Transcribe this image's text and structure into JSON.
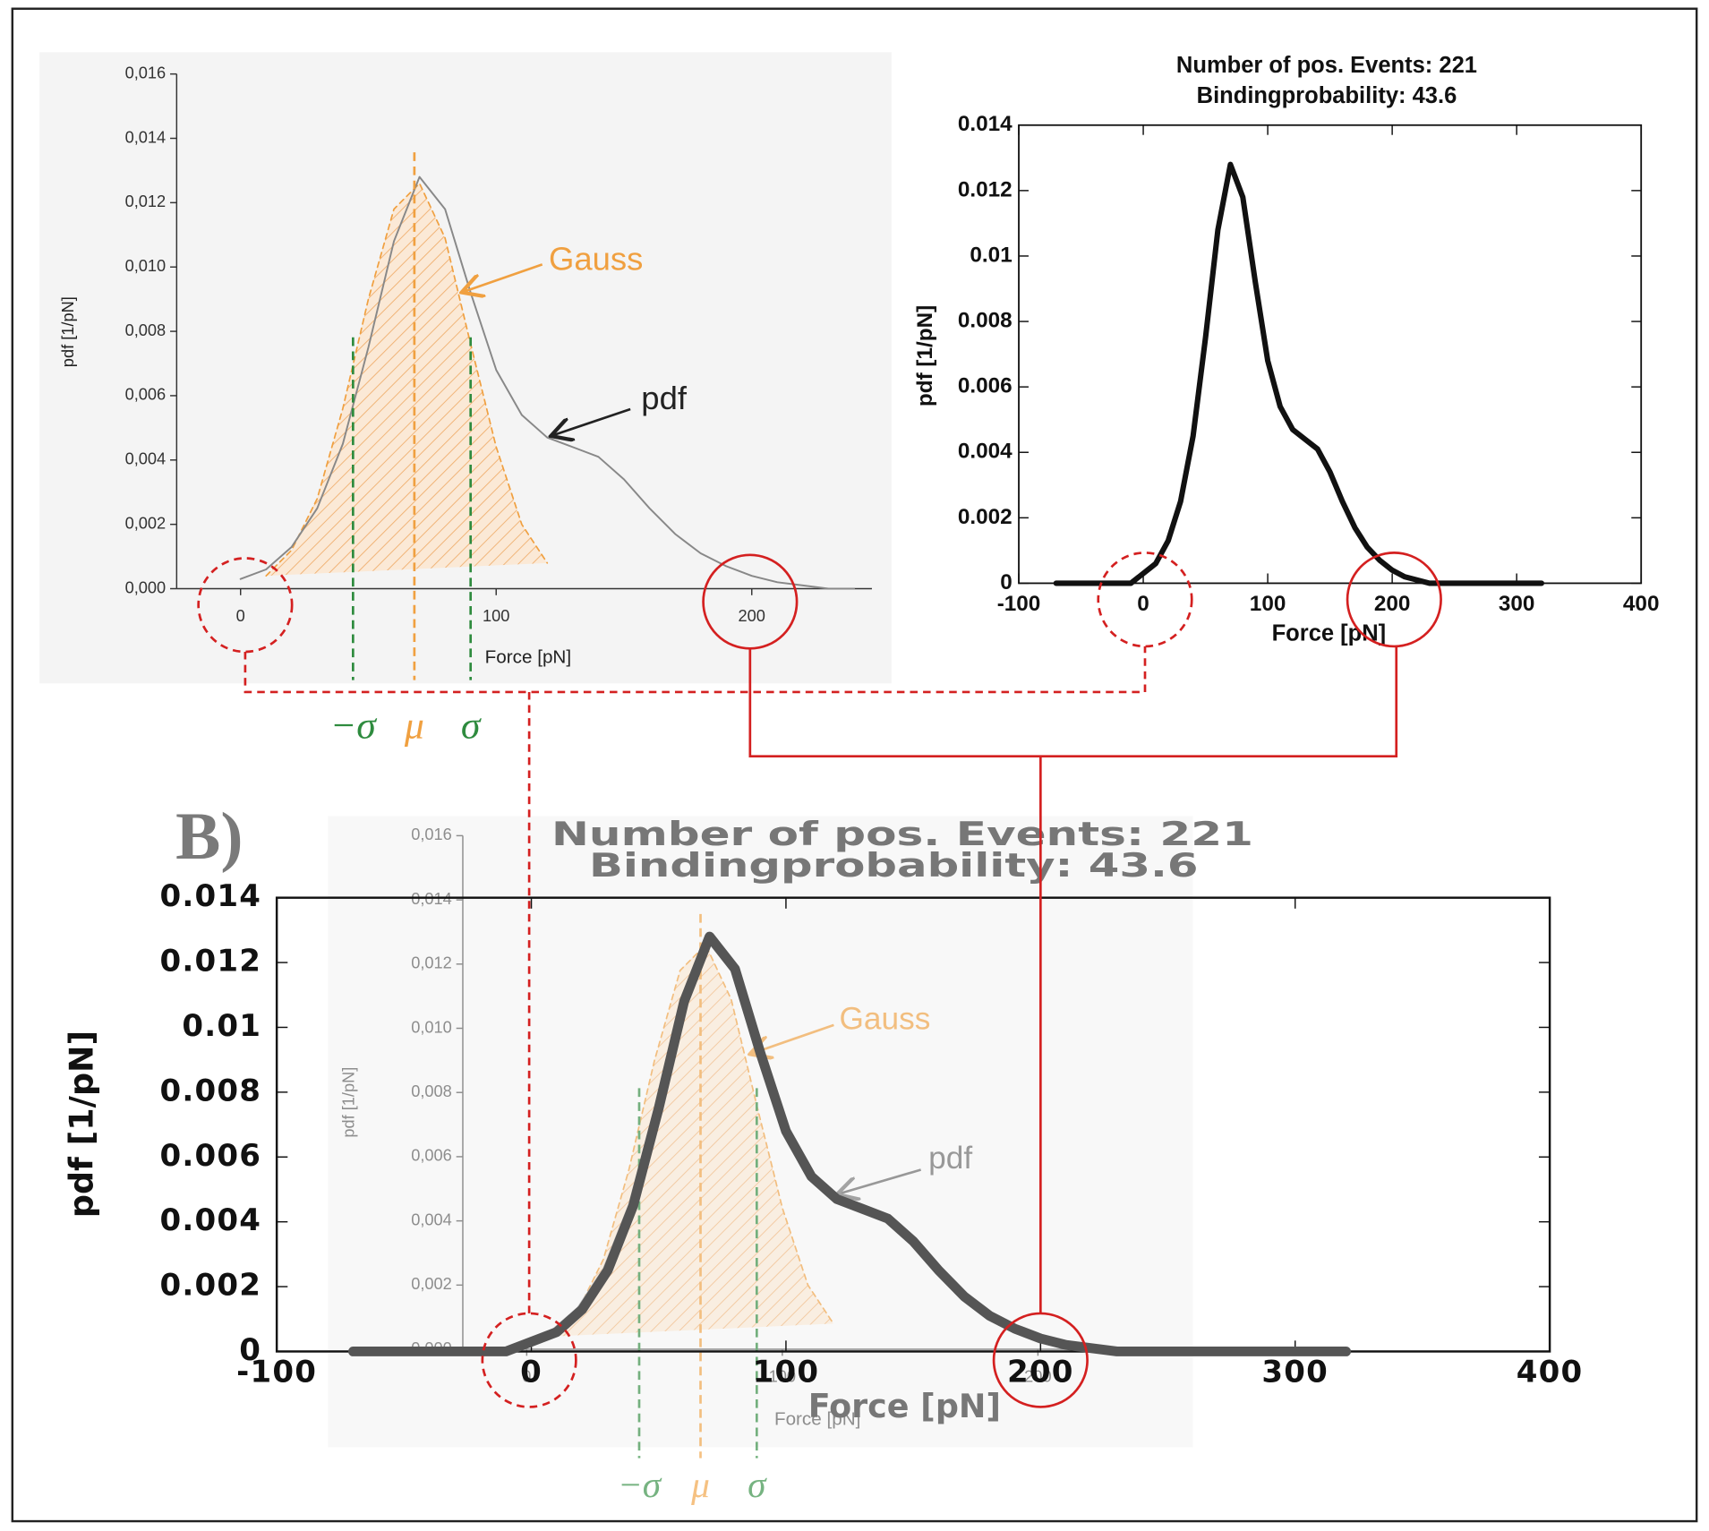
{
  "panel_label": "B)",
  "chart_data": [
    {
      "type": "line",
      "frame": "axes",
      "x_label": "Force [pN]",
      "y_label": "pdf [1/pN]",
      "xlim": [
        -25,
        247
      ],
      "ylim": [
        0,
        0.016
      ],
      "xticks": [
        0,
        100,
        200
      ],
      "yticks": [
        {
          "value": 0,
          "label": "0,000"
        },
        {
          "value": 0.002,
          "label": "0,002"
        },
        {
          "value": 0.004,
          "label": "0,004"
        },
        {
          "value": 0.006,
          "label": "0,006"
        },
        {
          "value": 0.008,
          "label": "0,008"
        },
        {
          "value": 0.01,
          "label": "0,010"
        },
        {
          "value": 0.012,
          "label": "0,012"
        },
        {
          "value": 0.014,
          "label": "0,014"
        },
        {
          "value": 0.016,
          "label": "0,016"
        }
      ],
      "x": [
        0,
        10,
        20,
        30,
        40,
        50,
        60,
        70,
        80,
        90,
        100,
        110,
        120,
        130,
        140,
        150,
        160,
        170,
        180,
        190,
        200,
        210,
        220,
        230,
        240
      ],
      "series": [
        {
          "name": "pdf",
          "color": "#888888",
          "values": [
            0.0003,
            0.0006,
            0.0013,
            0.0025,
            0.0045,
            0.0075,
            0.0108,
            0.0128,
            0.0118,
            0.0092,
            0.0068,
            0.0054,
            0.0047,
            0.0044,
            0.0041,
            0.0034,
            0.0025,
            0.0017,
            0.0011,
            0.0007,
            0.0004,
            0.0002,
            0.0001,
            0,
            0
          ]
        },
        {
          "name": "Gauss",
          "color": "#f0a040",
          "fill": "hatch",
          "values": [
            null,
            0.0004,
            0.0012,
            0.0028,
            0.0056,
            0.009,
            0.0118,
            0.0126,
            0.0109,
            0.0076,
            0.0044,
            0.002,
            0.0008,
            null,
            null,
            null,
            null,
            null,
            null,
            null,
            null,
            null,
            null,
            null,
            null
          ]
        }
      ],
      "reference_lines": [
        {
          "label": "−σ",
          "value": 44,
          "color": "#2e8b3e"
        },
        {
          "label": "μ",
          "value": 68,
          "color": "#f0a040"
        },
        {
          "label": "σ",
          "value": 90,
          "color": "#2e8b3e"
        }
      ]
    },
    {
      "type": "line",
      "frame": "box",
      "title": "Number of pos. Events: 221",
      "subtitle": "Bindingprobability: 43.6",
      "x_label": "Force [pN]",
      "y_label": "pdf [1/pN]",
      "xlim": [
        -100,
        400
      ],
      "ylim": [
        0,
        0.014
      ],
      "xticks": [
        -100,
        0,
        100,
        200,
        300,
        400
      ],
      "yticks": [
        0,
        0.002,
        0.004,
        0.006,
        0.008,
        0.01,
        0.012,
        0.014
      ],
      "x": [
        -70,
        -50,
        -30,
        -10,
        0,
        10,
        20,
        30,
        40,
        50,
        60,
        70,
        80,
        90,
        100,
        110,
        120,
        130,
        140,
        150,
        160,
        170,
        180,
        190,
        200,
        210,
        220,
        230,
        240,
        280,
        320
      ],
      "series": [
        {
          "color": "#111111",
          "values": [
            0,
            0,
            0,
            0,
            0.0003,
            0.0006,
            0.0013,
            0.0025,
            0.0045,
            0.0075,
            0.0108,
            0.0128,
            0.0118,
            0.0092,
            0.0068,
            0.0054,
            0.0047,
            0.0044,
            0.0041,
            0.0034,
            0.0025,
            0.0017,
            0.0011,
            0.0007,
            0.0004,
            0.0002,
            0.0001,
            0,
            0,
            0,
            0
          ]
        }
      ]
    },
    {
      "type": "line",
      "frame": "box",
      "title": "Number of pos. Events: 221",
      "subtitle": "Bindingprobability: 43.6",
      "x_label": "Force [pN]",
      "y_label": "pdf [1/pN]",
      "xlim": [
        -100,
        400
      ],
      "ylim": [
        0,
        0.014
      ],
      "xticks": [
        -100,
        0,
        100,
        200,
        300,
        400
      ],
      "yticks": [
        0,
        0.002,
        0.004,
        0.006,
        0.008,
        0.01,
        0.012,
        0.014
      ],
      "x": [
        -70,
        -50,
        -30,
        -10,
        0,
        10,
        20,
        30,
        40,
        50,
        60,
        70,
        80,
        90,
        100,
        110,
        120,
        130,
        140,
        150,
        160,
        170,
        180,
        190,
        200,
        210,
        220,
        230,
        240,
        280,
        320
      ],
      "series": [
        {
          "color": "#555555",
          "values": [
            0,
            0,
            0,
            0,
            0.0003,
            0.0006,
            0.0013,
            0.0025,
            0.0045,
            0.0075,
            0.0108,
            0.0128,
            0.0118,
            0.0092,
            0.0068,
            0.0054,
            0.0047,
            0.0044,
            0.0041,
            0.0034,
            0.0025,
            0.0017,
            0.0011,
            0.0007,
            0.0004,
            0.0002,
            0.0001,
            0,
            0,
            0,
            0
          ]
        }
      ]
    },
    {
      "type": "line",
      "frame": "axes",
      "x_label": "Force [pN]",
      "y_label": "pdf [1/pN]",
      "xlim": [
        -25,
        247
      ],
      "ylim": [
        0,
        0.016
      ],
      "xticks": [
        0,
        100,
        200
      ],
      "yticks": [
        {
          "value": 0,
          "label": "0,000"
        },
        {
          "value": 0.002,
          "label": "0,002"
        },
        {
          "value": 0.004,
          "label": "0,004"
        },
        {
          "value": 0.006,
          "label": "0,006"
        },
        {
          "value": 0.008,
          "label": "0,008"
        },
        {
          "value": 0.01,
          "label": "0,010"
        },
        {
          "value": 0.012,
          "label": "0,012"
        },
        {
          "value": 0.014,
          "label": "0,014"
        },
        {
          "value": 0.016,
          "label": "0,016"
        }
      ],
      "x": [
        0,
        10,
        20,
        30,
        40,
        50,
        60,
        70,
        80,
        90,
        100,
        110,
        120,
        130,
        140,
        150,
        160,
        170,
        180,
        190,
        200,
        210,
        220,
        230,
        240
      ],
      "series": [
        {
          "name": "pdf",
          "color": "#999999",
          "values": [
            0.0003,
            0.0006,
            0.0013,
            0.0025,
            0.0045,
            0.0075,
            0.0108,
            0.0128,
            0.0118,
            0.0092,
            0.0068,
            0.0054,
            0.0047,
            0.0044,
            0.0041,
            0.0034,
            0.0025,
            0.0017,
            0.0011,
            0.0007,
            0.0004,
            0.0002,
            0.0001,
            0,
            0
          ]
        },
        {
          "name": "Gauss",
          "color": "#f0a040",
          "fill": "hatch",
          "values": [
            null,
            0.0004,
            0.0012,
            0.0028,
            0.0056,
            0.009,
            0.0118,
            0.0126,
            0.0109,
            0.0076,
            0.0044,
            0.002,
            0.0008,
            null,
            null,
            null,
            null,
            null,
            null,
            null,
            null,
            null,
            null,
            null,
            null
          ]
        }
      ],
      "reference_lines": [
        {
          "label": "−σ",
          "value": 44,
          "color": "#2e8b3e"
        },
        {
          "label": "μ",
          "value": 68,
          "color": "#f0a040"
        },
        {
          "label": "σ",
          "value": 90,
          "color": "#2e8b3e"
        }
      ]
    }
  ]
}
